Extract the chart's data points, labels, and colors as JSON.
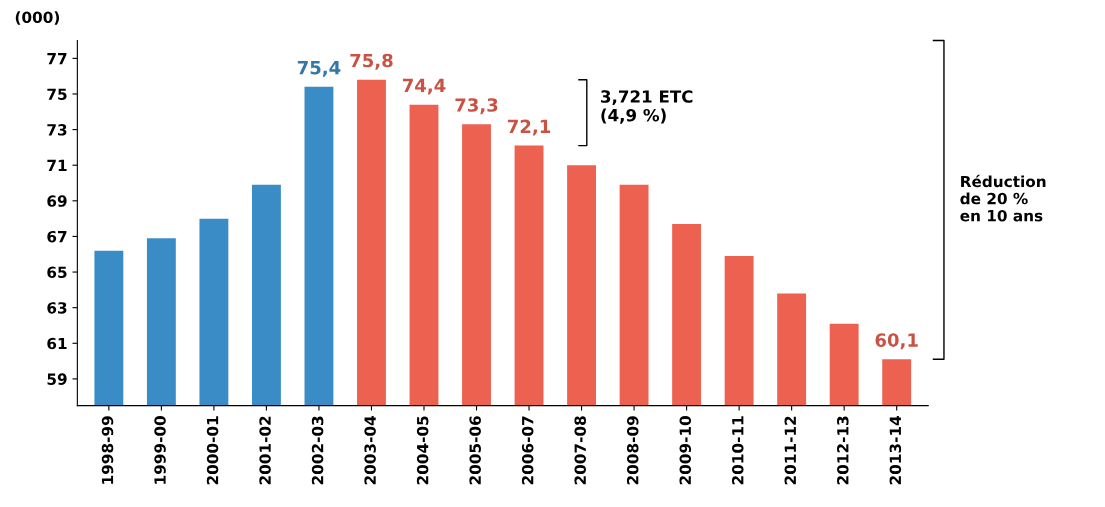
{
  "chart_data": {
    "type": "bar",
    "ylabel": "(000)",
    "categories": [
      "1998-99",
      "1999-00",
      "2000-01",
      "2001-02",
      "2002-03",
      "2003-04",
      "2004-05",
      "2005-06",
      "2006-07",
      "2007-08",
      "2008-09",
      "2009-10",
      "2010-11",
      "2011-12",
      "2012-13",
      "2013-14"
    ],
    "values": [
      66.2,
      66.9,
      68.0,
      69.9,
      75.4,
      75.8,
      74.4,
      73.3,
      72.1,
      71.0,
      69.9,
      67.7,
      65.9,
      63.8,
      62.1,
      60.1
    ],
    "colors": [
      "#3a8cc6",
      "#3a8cc6",
      "#3a8cc6",
      "#3a8cc6",
      "#3a8cc6",
      "#ec6150",
      "#ec6150",
      "#ec6150",
      "#ec6150",
      "#ec6150",
      "#ec6150",
      "#ec6150",
      "#ec6150",
      "#ec6150",
      "#ec6150",
      "#ec6150"
    ],
    "value_labels": [
      null,
      null,
      null,
      null,
      "75,4",
      "75,8",
      "74,4",
      "73,3",
      "72,1",
      null,
      null,
      null,
      null,
      null,
      null,
      "60,1"
    ],
    "ylim": [
      57.5,
      78
    ],
    "yticks": [
      59,
      61,
      63,
      65,
      67,
      69,
      71,
      73,
      75,
      77
    ],
    "annotations": [
      "3,721 ETC\n(4,9 %)",
      "Réduction\nde 20 %\nen 10 ans"
    ],
    "grid": false
  }
}
